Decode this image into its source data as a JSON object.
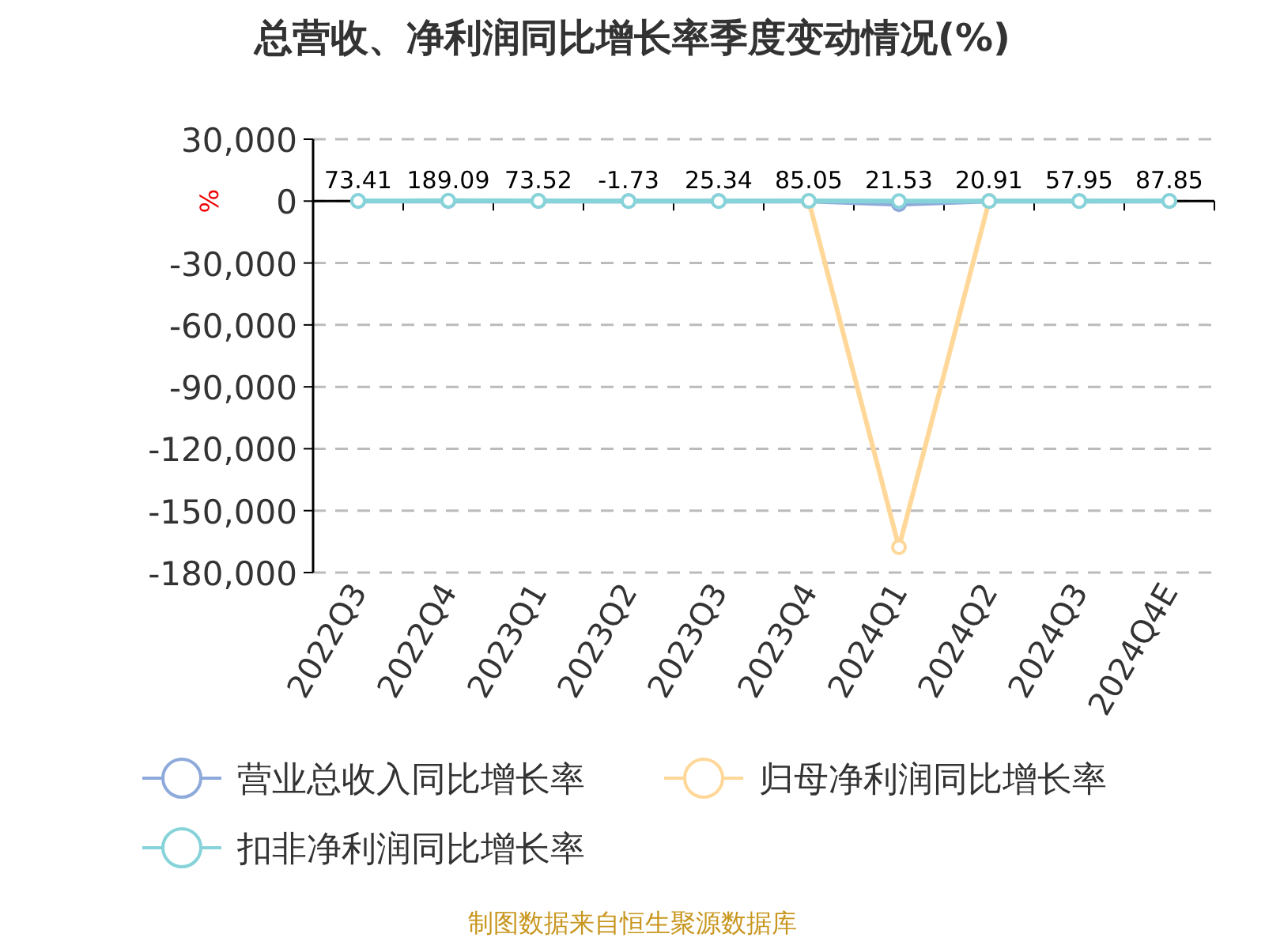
{
  "chart_data": {
    "type": "line",
    "title": "总营收、净利润同比增长率季度变动情况(%)",
    "ylabel": "%",
    "categories": [
      "2022Q3",
      "2022Q4",
      "2023Q1",
      "2023Q2",
      "2023Q3",
      "2023Q4",
      "2024Q1",
      "2024Q2",
      "2024Q3",
      "2024Q4E"
    ],
    "series": [
      {
        "name": "营业总收入同比增长率",
        "color": "#8eaadb",
        "values": [
          0,
          0,
          0,
          0,
          0,
          0,
          -1500,
          0,
          0,
          0
        ]
      },
      {
        "name": "归母净利润同比增长率",
        "color": "#ffd899",
        "values": [
          null,
          null,
          null,
          null,
          null,
          0,
          -167700,
          0,
          null,
          null
        ]
      },
      {
        "name": "扣非净利润同比增长率",
        "color": "#86d3d9",
        "values": [
          73.41,
          189.09,
          73.52,
          -1.73,
          25.34,
          85.05,
          21.53,
          20.91,
          57.95,
          87.85
        ],
        "value_labels": [
          "73.41",
          "189.09",
          "73.52",
          "-1.73",
          "25.34",
          "85.05",
          "21.53",
          "20.91",
          "57.95",
          "87.85"
        ]
      }
    ],
    "ylim": [
      -180000,
      30000
    ],
    "yticks": [
      {
        "value": 30000,
        "label": "30,000"
      },
      0,
      {
        "value": -30000,
        "label": "-30,000"
      },
      {
        "value": -60000,
        "label": "-60,000"
      },
      {
        "value": -90000,
        "label": "-90,000"
      },
      {
        "value": -120000,
        "label": "-120,000"
      },
      {
        "value": -150000,
        "label": "-150,000"
      },
      {
        "value": -180000,
        "label": "-180,000"
      }
    ],
    "grid": "y",
    "legend": "bottom",
    "marker": "circle",
    "line_style": "solid",
    "annotations": [
      "制图数据来自恒生聚源数据库"
    ]
  }
}
